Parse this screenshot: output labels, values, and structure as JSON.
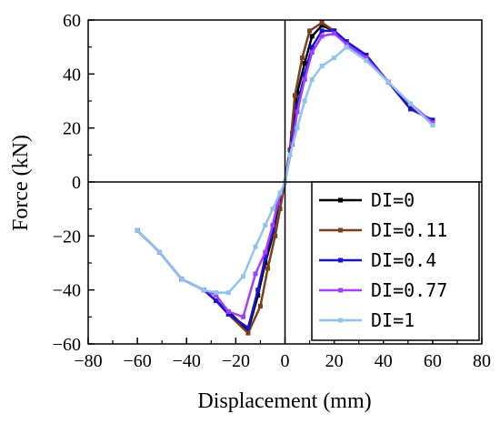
{
  "chart_data": {
    "type": "line",
    "title": "",
    "xlabel": "Displacement (mm)",
    "ylabel": "Force (kN)",
    "xlim": [
      -80,
      80
    ],
    "ylim": [
      -60,
      60
    ],
    "xticks": [
      -80,
      -60,
      -40,
      -20,
      0,
      20,
      40,
      60,
      80
    ],
    "yticks": [
      -60,
      -40,
      -20,
      0,
      20,
      40,
      60
    ],
    "grid": false,
    "legend_position": "bottom-right",
    "series": [
      {
        "name": "DI=0",
        "color": "#000000",
        "x": [
          -60,
          -51,
          -42,
          -33,
          -28,
          -23,
          -15,
          -11,
          -8,
          -5,
          -3,
          0,
          3,
          5,
          8,
          11,
          15,
          20,
          25,
          33,
          42,
          51,
          60
        ],
        "y": [
          -18,
          -26,
          -36,
          -40,
          -44,
          -48,
          -55,
          -42,
          -30,
          -20,
          -10,
          0,
          18,
          33,
          44,
          54,
          58,
          56,
          52,
          47,
          37,
          28,
          22
        ]
      },
      {
        "name": "DI=0.11",
        "color": "#7f3f1f",
        "x": [
          -60,
          -51,
          -42,
          -33,
          -28,
          -23,
          -15,
          -10,
          -7,
          -4,
          -2,
          0,
          2,
          4,
          7,
          10,
          15,
          20,
          25,
          33,
          42,
          51,
          60
        ],
        "y": [
          -18,
          -26,
          -36,
          -40,
          -44,
          -49,
          -56,
          -46,
          -32,
          -20,
          -10,
          0,
          12,
          32,
          46,
          56,
          59,
          56,
          51,
          46,
          37,
          28,
          22
        ]
      },
      {
        "name": "DI=0.4",
        "color": "#1a12d6",
        "x": [
          -60,
          -51,
          -42,
          -33,
          -28,
          -23,
          -15,
          -11,
          -8,
          -5,
          -3,
          0,
          3,
          5,
          8,
          11,
          15,
          20,
          25,
          33,
          42,
          51,
          60
        ],
        "y": [
          -18,
          -26,
          -36,
          -40,
          -44,
          -49,
          -54,
          -40,
          -28,
          -18,
          -8,
          0,
          16,
          28,
          40,
          50,
          56,
          56,
          52,
          47,
          37,
          27,
          23
        ]
      },
      {
        "name": "DI=0.77",
        "color": "#a040ff",
        "x": [
          -60,
          -51,
          -42,
          -33,
          -28,
          -23,
          -17,
          -12,
          -8,
          -5,
          -3,
          0,
          3,
          5,
          8,
          11,
          15,
          20,
          25,
          33,
          42,
          51,
          60
        ],
        "y": [
          -18,
          -26,
          -36,
          -40,
          -42,
          -48,
          -50,
          -34,
          -26,
          -16,
          -8,
          0,
          14,
          26,
          38,
          48,
          54,
          55,
          51,
          46,
          37,
          29,
          22
        ]
      },
      {
        "name": "DI=1",
        "color": "#8fc4f0",
        "x": [
          -60,
          -51,
          -42,
          -33,
          -28,
          -23,
          -17,
          -12,
          -8,
          -5,
          -2,
          0,
          2,
          5,
          8,
          11,
          15,
          20,
          25,
          33,
          42,
          51,
          60
        ],
        "y": [
          -18,
          -26,
          -36,
          -40,
          -41,
          -41,
          -35,
          -24,
          -16,
          -10,
          -4,
          0,
          10,
          20,
          30,
          38,
          43,
          46,
          50,
          45,
          37,
          29,
          21
        ]
      }
    ]
  }
}
